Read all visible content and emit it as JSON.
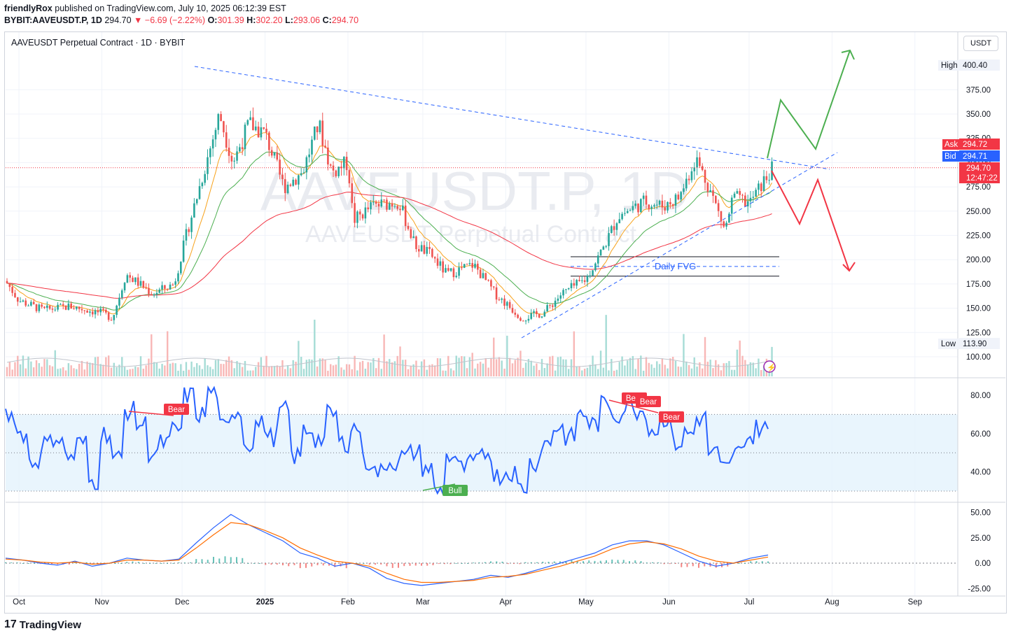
{
  "header": {
    "publisher": "friendlyRox",
    "published_text": "published on TradingView.com, July 10, 2025 06:12:39 EST",
    "symbol": "BYBIT:AAVEUSDT.P, 1D",
    "last": "294.70",
    "change": "−6.69 (−2.22%)",
    "o_label": "O:",
    "o": "301.39",
    "h_label": "H:",
    "h": "302.20",
    "l_label": "L:",
    "l": "293.06",
    "c_label": "C:",
    "c": "294.70"
  },
  "legend": {
    "title": "AAVEUSDT Perpetual Contract · 1D · BYBIT"
  },
  "currency_button": "USDT",
  "watermark": {
    "symbol": "AAVEUSDT.P, 1D",
    "name": "AAVEUSDT Perpetual Contract"
  },
  "price_labels": {
    "high_label": "High",
    "high_value": "400.40",
    "low_label": "Low",
    "low_value": "113.90",
    "ask_label": "Ask",
    "ask_value": "294.72",
    "bid_label": "Bid",
    "bid_value": "294.71",
    "last_value": "294.70",
    "countdown": "12:47:22"
  },
  "annotations": {
    "fvg": "Daily FVG",
    "bear": "Bear",
    "bull": "Bull"
  },
  "footer": {
    "brand": "TradingView"
  },
  "colors": {
    "up": "#26a69a",
    "down": "#ef5350",
    "rsi": "#2962ff",
    "ema_fast": "#f7a21b",
    "ema_mid": "#4caf50",
    "ema_slow": "#f23645",
    "trend": "#2962ff",
    "macd": "#2962ff",
    "signal": "#ff6d00"
  },
  "chart_data": [
    {
      "type": "line",
      "title": "AAVEUSDT Perpetual Contract · 1D · BYBIT",
      "xlabel": "",
      "ylabel": "",
      "x_ticks": [
        "Oct",
        "Nov",
        "Dec",
        "2025",
        "Feb",
        "Mar",
        "Apr",
        "May",
        "Jun",
        "Jul",
        "Aug",
        "Sep"
      ],
      "y_ticks": [
        100,
        125,
        150,
        175,
        200,
        225,
        250,
        275,
        300,
        325,
        350,
        375
      ],
      "ylim": [
        92,
        412
      ],
      "series": [
        {
          "name": "",
          "approx_close_path": [
            [
              "2024-09-26",
              178
            ],
            [
              "2024-10-01",
              158
            ],
            [
              "2024-10-10",
              148
            ],
            [
              "2024-10-20",
              152
            ],
            [
              "2024-11-01",
              145
            ],
            [
              "2024-11-05",
              140
            ],
            [
              "2024-11-10",
              185
            ],
            [
              "2024-11-20",
              165
            ],
            [
              "2024-11-28",
              175
            ],
            [
              "2024-12-03",
              230
            ],
            [
              "2024-12-10",
              300
            ],
            [
              "2024-12-15",
              350
            ],
            [
              "2024-12-20",
              300
            ],
            [
              "2024-12-26",
              340
            ],
            [
              "2025-01-01",
              330
            ],
            [
              "2025-01-08",
              275
            ],
            [
              "2025-01-15",
              290
            ],
            [
              "2025-01-21",
              340
            ],
            [
              "2025-01-26",
              290
            ],
            [
              "2025-02-01",
              300
            ],
            [
              "2025-02-03",
              240
            ],
            [
              "2025-02-10",
              255
            ],
            [
              "2025-02-20",
              260
            ],
            [
              "2025-02-26",
              215
            ],
            [
              "2025-03-04",
              205
            ],
            [
              "2025-03-10",
              185
            ],
            [
              "2025-03-20",
              195
            ],
            [
              "2025-03-28",
              165
            ],
            [
              "2025-04-07",
              140
            ],
            [
              "2025-04-15",
              145
            ],
            [
              "2025-04-22",
              165
            ],
            [
              "2025-05-01",
              180
            ],
            [
              "2025-05-08",
              215
            ],
            [
              "2025-05-13",
              245
            ],
            [
              "2025-05-23",
              260
            ],
            [
              "2025-05-30",
              255
            ],
            [
              "2025-06-05",
              265
            ],
            [
              "2025-06-11",
              305
            ],
            [
              "2025-06-16",
              275
            ],
            [
              "2025-06-22",
              230
            ],
            [
              "2025-06-25",
              265
            ],
            [
              "2025-07-01",
              258
            ],
            [
              "2025-07-10",
              294.7
            ]
          ]
        }
      ],
      "lines": {
        "high": 400.4,
        "low": 113.9,
        "ask": 294.72,
        "bid": 294.71,
        "last": 294.7,
        "fvg_top": 203,
        "fvg_mid": 193,
        "fvg_bottom": 183
      },
      "projections": {
        "bull": [
          [
            294,
            "start"
          ],
          [
            365,
            "up"
          ],
          [
            312,
            "pullback"
          ],
          [
            410,
            "target"
          ]
        ],
        "bear": [
          [
            272,
            "start"
          ],
          [
            237,
            "down"
          ],
          [
            282,
            "bounce"
          ],
          [
            188,
            "target"
          ]
        ]
      }
    },
    {
      "type": "line",
      "title": "RSI",
      "y_ticks": [
        40,
        60,
        80
      ],
      "ylim": [
        25,
        87
      ],
      "bands": [
        30,
        50,
        70
      ],
      "series": [
        {
          "name": "",
          "approx_values": [
            70,
            60,
            45,
            55,
            58,
            48,
            55,
            35,
            60,
            47,
            72,
            65,
            50,
            55,
            62,
            80,
            70,
            82,
            63,
            72,
            55,
            65,
            58,
            72,
            48,
            62,
            57,
            70,
            55,
            63,
            45,
            40,
            45,
            48,
            50,
            42,
            30,
            48,
            42,
            45,
            50,
            38,
            40,
            32,
            45,
            55,
            63,
            58,
            70,
            65,
            75,
            70,
            75,
            72,
            62,
            68,
            55,
            60,
            68,
            50,
            42,
            50,
            58,
            63,
            60
          ]
        }
      ],
      "divergence_labels": [
        "Bear",
        "Bull",
        "Bear",
        "Bear",
        "Bear"
      ]
    },
    {
      "type": "line",
      "title": "MACD",
      "y_ticks": [
        -25,
        0,
        25,
        50
      ],
      "ylim": [
        -30,
        53
      ],
      "series": [
        {
          "name": "",
          "approx_values": [
            5,
            3,
            0,
            -2,
            2,
            -3,
            0,
            5,
            3,
            2,
            4,
            20,
            35,
            48,
            38,
            30,
            22,
            10,
            5,
            -3,
            0,
            -5,
            -15,
            -20,
            -22,
            -20,
            -18,
            -16,
            -12,
            -14,
            -10,
            -5,
            0,
            5,
            10,
            18,
            22,
            22,
            18,
            10,
            2,
            -3,
            0,
            5,
            8
          ]
        },
        {
          "name": "",
          "approx_values": [
            4,
            3,
            1,
            0,
            1,
            -1,
            0,
            3,
            3,
            2,
            3,
            15,
            28,
            40,
            38,
            32,
            25,
            15,
            8,
            2,
            0,
            -3,
            -10,
            -16,
            -19,
            -19,
            -18,
            -17,
            -14,
            -13,
            -11,
            -7,
            -3,
            2,
            7,
            14,
            19,
            21,
            19,
            14,
            7,
            2,
            0,
            3,
            6
          ]
        }
      ]
    }
  ]
}
